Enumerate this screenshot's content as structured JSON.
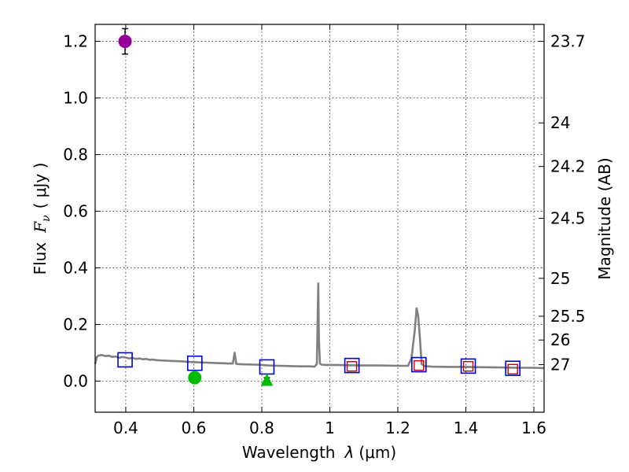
{
  "chart_data": {
    "type": "scatter",
    "xlabel_prefix": "Wavelength",
    "xlabel_lambda": "λ",
    "xlabel_unit": "(μm)",
    "ylabel_prefix": "Flux",
    "ylabel_symbol": "F",
    "ylabel_sub": "ν",
    "ylabel_unit": "( μJy )",
    "y2label": "Magnitude (AB)",
    "xlim": [
      0.31,
      1.63
    ],
    "ylim": [
      -0.11,
      1.26
    ],
    "grid": true,
    "x_ticks": [
      {
        "value": 0.4,
        "label": "0.4"
      },
      {
        "value": 0.6,
        "label": "0.6"
      },
      {
        "value": 0.8,
        "label": "0.8"
      },
      {
        "value": 1.0,
        "label": "1"
      },
      {
        "value": 1.2,
        "label": "1.2"
      },
      {
        "value": 1.4,
        "label": "1.4"
      },
      {
        "value": 1.6,
        "label": "1.6"
      }
    ],
    "y_ticks": [
      {
        "value": 0.0,
        "label": "0.0"
      },
      {
        "value": 0.2,
        "label": "0.2"
      },
      {
        "value": 0.4,
        "label": "0.4"
      },
      {
        "value": 0.6,
        "label": "0.6"
      },
      {
        "value": 0.8,
        "label": "0.8"
      },
      {
        "value": 1.0,
        "label": "1.0"
      },
      {
        "value": 1.2,
        "label": "1.2"
      }
    ],
    "y2_ticks": [
      {
        "flux": 1.2,
        "label": "23.7"
      },
      {
        "flux": 0.912,
        "label": "24"
      },
      {
        "flux": 0.758,
        "label": "24.2"
      },
      {
        "flux": 0.575,
        "label": "24.5"
      },
      {
        "flux": 0.363,
        "label": "25"
      },
      {
        "flux": 0.229,
        "label": "25.5"
      },
      {
        "flux": 0.145,
        "label": "26"
      },
      {
        "flux": 0.058,
        "label": "27"
      }
    ],
    "sed_model": {
      "color": "#808080",
      "x": [
        0.31,
        0.315,
        0.32,
        0.33,
        0.34,
        0.35,
        0.36,
        0.37,
        0.38,
        0.39,
        0.4,
        0.41,
        0.42,
        0.43,
        0.44,
        0.45,
        0.46,
        0.47,
        0.48,
        0.49,
        0.5,
        0.52,
        0.54,
        0.56,
        0.58,
        0.6,
        0.62,
        0.64,
        0.66,
        0.68,
        0.7,
        0.715,
        0.72,
        0.725,
        0.73,
        0.75,
        0.78,
        0.8,
        0.82,
        0.85,
        0.88,
        0.91,
        0.94,
        0.955,
        0.962,
        0.966,
        0.968,
        0.971,
        0.975,
        0.99,
        1.02,
        1.05,
        1.1,
        1.15,
        1.2,
        1.22,
        1.23,
        1.24,
        1.25,
        1.255,
        1.26,
        1.265,
        1.27,
        1.28,
        1.29,
        1.3,
        1.35,
        1.4,
        1.45,
        1.5,
        1.55,
        1.6,
        1.63
      ],
      "y": [
        0.06,
        0.085,
        0.09,
        0.092,
        0.088,
        0.09,
        0.085,
        0.087,
        0.082,
        0.085,
        0.083,
        0.08,
        0.082,
        0.078,
        0.08,
        0.077,
        0.078,
        0.075,
        0.076,
        0.074,
        0.073,
        0.072,
        0.071,
        0.07,
        0.068,
        0.067,
        0.066,
        0.065,
        0.064,
        0.063,
        0.062,
        0.062,
        0.1,
        0.061,
        0.06,
        0.059,
        0.058,
        0.057,
        0.055,
        0.054,
        0.053,
        0.052,
        0.052,
        0.051,
        0.06,
        0.345,
        0.15,
        0.062,
        0.058,
        0.057,
        0.057,
        0.056,
        0.055,
        0.055,
        0.054,
        0.054,
        0.054,
        0.08,
        0.18,
        0.257,
        0.23,
        0.15,
        0.06,
        0.052,
        0.052,
        0.051,
        0.05,
        0.05,
        0.049,
        0.048,
        0.047,
        0.047,
        0.046
      ]
    },
    "model_photometry": {
      "color": "#0000cc",
      "x": [
        0.398,
        0.603,
        0.815,
        1.065,
        1.262,
        1.407,
        1.538
      ],
      "y": [
        0.075,
        0.063,
        0.05,
        0.055,
        0.058,
        0.053,
        0.045
      ]
    },
    "observed_photometry": {
      "color": "#cc0000",
      "x": [
        1.065,
        1.262,
        1.407,
        1.538
      ],
      "y": [
        0.052,
        0.055,
        0.052,
        0.042
      ]
    },
    "detections": [
      {
        "x": 0.398,
        "y": 1.2,
        "err": 0.045,
        "marker": "circle",
        "color": "#990099"
      },
      {
        "x": 0.603,
        "y": 0.012,
        "err": 0.012,
        "marker": "circle",
        "color": "#00bb00"
      },
      {
        "x": 0.815,
        "y": 0.0,
        "err": 0.012,
        "marker": "triangle",
        "color": "#00bb00"
      }
    ]
  }
}
